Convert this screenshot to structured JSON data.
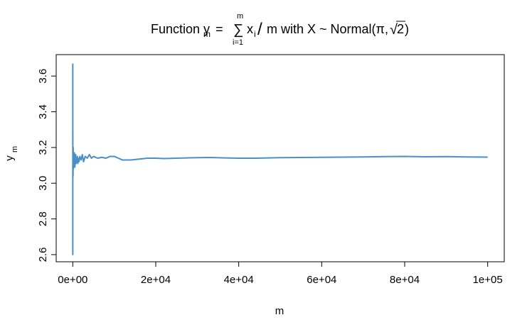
{
  "chart_data": {
    "type": "line",
    "title": {
      "prefix": "Function y",
      "prefix_sub": "m",
      "equals": "=",
      "sum_top": "m",
      "sum_symbol": "∑",
      "sum_bottom": "i=1",
      "term": "x",
      "term_sub": "i",
      "slash": "/",
      "middle": "m with X ~ Normal(π,",
      "sqrt_symbol": "√",
      "sqrt_arg": "2",
      "suffix": ")"
    },
    "xlabel": "m",
    "ylabel": "y",
    "ylabel_sub": "m",
    "xlim": [
      -4000,
      104000
    ],
    "ylim": [
      2.56,
      3.72
    ],
    "xticks": [
      0,
      20000,
      40000,
      60000,
      80000,
      100000
    ],
    "xtick_labels": [
      "0e+00",
      "2e+04",
      "4e+04",
      "6e+04",
      "8e+04",
      "1e+05"
    ],
    "yticks": [
      2.6,
      2.8,
      3.0,
      3.2,
      3.4,
      3.6
    ],
    "ytick_labels": [
      "2.6",
      "2.8",
      "3.0",
      "3.2",
      "3.4",
      "3.6"
    ],
    "grid": false,
    "line_color": "#4A90C8",
    "series": [
      {
        "x": [
          1,
          2,
          3,
          5,
          10,
          20,
          40,
          60,
          100,
          150,
          200,
          300,
          400,
          500,
          600,
          700,
          800,
          900,
          1000,
          1100,
          1200,
          1300,
          1500,
          1700,
          2000,
          2300,
          2600,
          3000,
          3500,
          4000,
          4500,
          5000,
          6000,
          7000,
          8000,
          9000,
          10000,
          11000,
          12000,
          14000,
          16000,
          18000,
          20000,
          22000,
          25000,
          28000,
          30000,
          33000,
          36000,
          40000,
          44000,
          48000,
          50000,
          55000,
          60000,
          65000,
          70000,
          75000,
          80000,
          85000,
          90000,
          95000,
          100000
        ],
        "y": [
          3.67,
          2.6,
          3.45,
          3.0,
          3.28,
          3.05,
          3.19,
          3.04,
          3.2,
          3.08,
          3.15,
          3.1,
          3.17,
          3.09,
          3.13,
          3.16,
          3.11,
          3.14,
          3.12,
          3.15,
          3.11,
          3.14,
          3.12,
          3.15,
          3.13,
          3.16,
          3.12,
          3.15,
          3.14,
          3.16,
          3.14,
          3.15,
          3.14,
          3.145,
          3.14,
          3.15,
          3.15,
          3.14,
          3.13,
          3.13,
          3.135,
          3.14,
          3.14,
          3.138,
          3.14,
          3.142,
          3.143,
          3.144,
          3.142,
          3.14,
          3.14,
          3.142,
          3.143,
          3.144,
          3.145,
          3.146,
          3.147,
          3.149,
          3.15,
          3.148,
          3.149,
          3.147,
          3.146
        ]
      }
    ]
  }
}
